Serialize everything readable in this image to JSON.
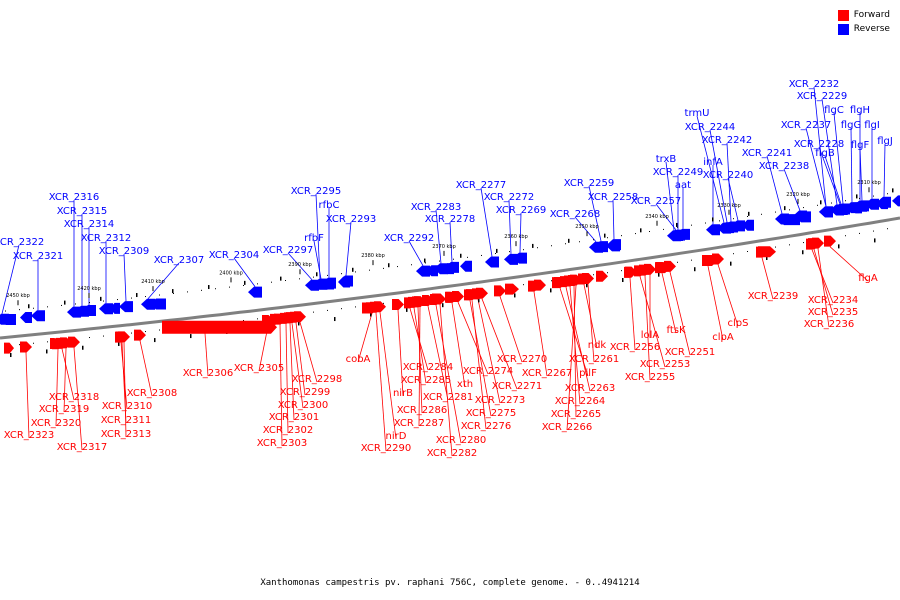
{
  "legend": {
    "forward_label": "Forward",
    "reverse_label": "Reverse",
    "forward_color": "#ff0000",
    "reverse_color": "#0000ff"
  },
  "caption": "Xanthomonas campestris pv. raphani 756C, complete genome. - 0..4941214",
  "axis_ticks": [
    "2450 kbp",
    "2420 kbp",
    "2410 kbp",
    "2400 kbp",
    "2390 kbp",
    "2380 kbp",
    "2370 kbp",
    "2360 kbp",
    "2350 kbp",
    "2340 kbp",
    "2330 kbp",
    "2320 kbp",
    "2310 kbp"
  ],
  "reverse_genes": [
    "XCR_2322",
    "XCR_2321",
    "XCR_2316",
    "XCR_2315",
    "XCR_2314",
    "XCR_2312",
    "XCR_2309",
    "XCR_2307",
    "XCR_2304",
    "XCR_2297",
    "rfbF",
    "XCR_2295",
    "rfbC",
    "XCR_2293",
    "XCR_2292",
    "XCR_2283",
    "XCR_2278",
    "XCR_2277",
    "XCR_2272",
    "XCR_2269",
    "XCR_2268",
    "XCR_2259",
    "XCR_2258",
    "XCR_2257",
    "trxB",
    "XCR_2249",
    "aat",
    "infA",
    "trmU",
    "XCR_2244",
    "XCR_2242",
    "XCR_2240",
    "XCR_2241",
    "XCR_2238",
    "XCR_2237",
    "XCR_2232",
    "XCR_2229",
    "XCR_2228",
    "flgB",
    "flgC",
    "flgF",
    "flgG",
    "flgH",
    "flgI",
    "flgJ",
    "flgK"
  ],
  "forward_genes": [
    "XCR_2323",
    "XCR_2318",
    "XCR_2319",
    "XCR_2320",
    "XCR_2317",
    "XCR_2310",
    "XCR_2311",
    "XCR_2313",
    "XCR_2308",
    "XCR_2306",
    "XCR_2305",
    "XCR_2298",
    "XCR_2299",
    "XCR_2300",
    "XCR_2301",
    "XCR_2302",
    "XCR_2303",
    "cobA",
    "nirD",
    "XCR_2290",
    "nirB",
    "XCR_2284",
    "XCR_2285",
    "XCR_2286",
    "XCR_2287",
    "XCR_2281",
    "XCR_2280",
    "XCR_2282",
    "xth",
    "XCR_2274",
    "XCR_2275",
    "XCR_2276",
    "XCR_2273",
    "XCR_2271",
    "XCR_2270",
    "XCR_2267",
    "pilF",
    "XCR_2263",
    "XCR_2264",
    "XCR_2265",
    "XCR_2266",
    "ndk",
    "XCR_2261",
    "XCR_2256",
    "lolA",
    "XCR_2253",
    "XCR_2255",
    "ftsK",
    "XCR_2251",
    "clpA",
    "clpS",
    "XCR_2239",
    "flgA",
    "XCR_2234",
    "XCR_2235",
    "XCR_2236"
  ]
}
